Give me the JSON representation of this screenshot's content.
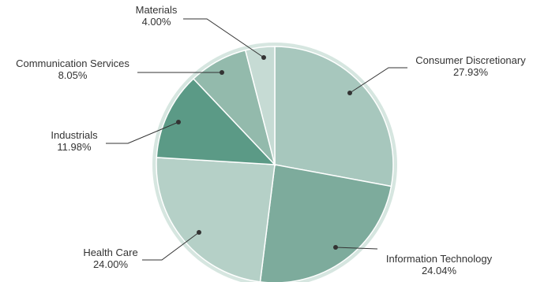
{
  "chart_data": {
    "type": "pie",
    "title": "",
    "slices": [
      {
        "label": "Consumer Discretionary",
        "value": 27.93,
        "value_label": "27.93%",
        "color": "#a7c7bd"
      },
      {
        "label": "Information Technology",
        "value": 24.04,
        "value_label": "24.04%",
        "color": "#7dab9c"
      },
      {
        "label": "Health Care",
        "value": 24.0,
        "value_label": "24.00%",
        "color": "#b5d0c7"
      },
      {
        "label": "Industrials",
        "value": 11.98,
        "value_label": "11.98%",
        "color": "#5b9a86"
      },
      {
        "label": "Communication Services",
        "value": 8.05,
        "value_label": "8.05%",
        "color": "#93baac"
      },
      {
        "label": "Materials",
        "value": 4.0,
        "value_label": "4.00%",
        "color": "#c6dbd4"
      }
    ],
    "start": "12 o'clock",
    "direction": "clockwise",
    "legend": "none",
    "data_labels": "outside with leader lines"
  }
}
